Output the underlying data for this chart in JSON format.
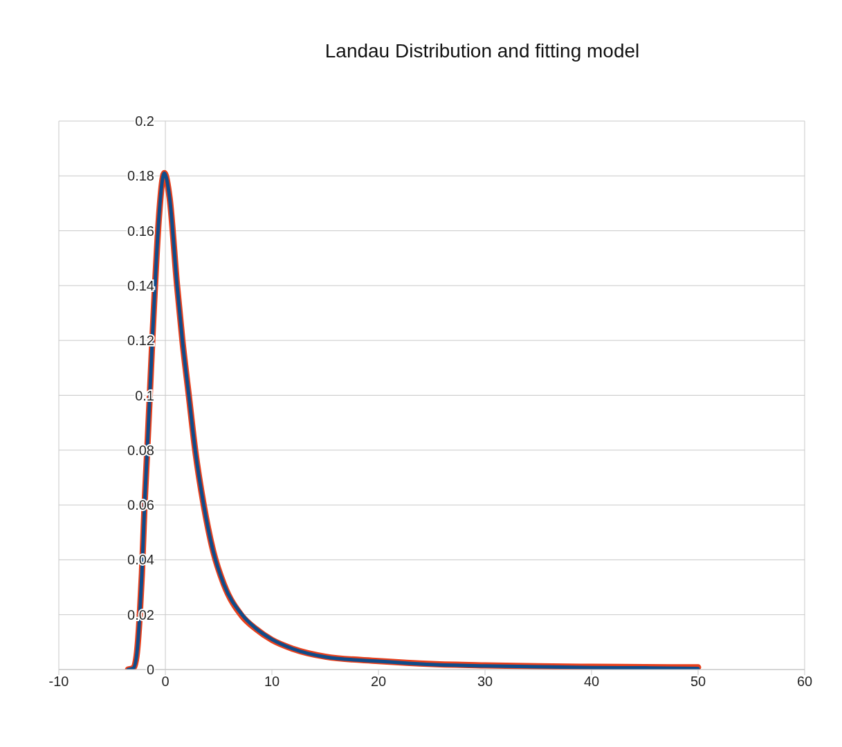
{
  "chart_data": {
    "type": "line",
    "title": "Landau Distribution and fitting model",
    "x": [
      -3.5,
      -3,
      -2.7,
      -2.4,
      -2.2,
      -1.95,
      -1.7,
      -1.46,
      -1.2,
      -0.97,
      -0.6,
      -0.1,
      0.4,
      1.1,
      1.6,
      2.2,
      2.8,
      3.6,
      4.5,
      5.5,
      7.2,
      8.5,
      10,
      12,
      15,
      20,
      25,
      30,
      35,
      40,
      45,
      50
    ],
    "series": [
      {
        "color": "#e8401c",
        "values": [
          0,
          0.0005,
          0.005,
          0.02,
          0.035,
          0.06,
          0.08,
          0.1,
          0.122,
          0.14,
          0.165,
          0.181,
          0.172,
          0.14,
          0.12,
          0.1,
          0.08,
          0.06,
          0.043,
          0.031,
          0.0195,
          0.0148,
          0.0108,
          0.0075,
          0.0047,
          0.0031,
          0.002,
          0.0015,
          0.0012,
          0.001,
          0.0009,
          0.0008
        ]
      },
      {
        "color": "#0f4c8a",
        "values": [
          0,
          0.0005,
          0.005,
          0.02,
          0.035,
          0.06,
          0.08,
          0.1,
          0.122,
          0.14,
          0.165,
          0.181,
          0.172,
          0.14,
          0.12,
          0.1,
          0.08,
          0.06,
          0.043,
          0.031,
          0.02,
          0.015,
          0.011,
          0.0075,
          0.0046,
          0.003,
          0.0018,
          0.0013,
          0.001,
          0.0007,
          0.0006,
          0.0004
        ]
      }
    ],
    "xlim": [
      -10,
      60
    ],
    "xticks": [
      -10,
      0,
      10,
      20,
      30,
      40,
      50,
      60
    ],
    "ylim": [
      0,
      0.2
    ],
    "yticks": [
      0,
      0.02,
      0.04,
      0.06,
      0.08,
      0.1,
      0.12,
      0.14,
      0.16,
      0.18,
      0.2
    ],
    "grid": "y"
  }
}
